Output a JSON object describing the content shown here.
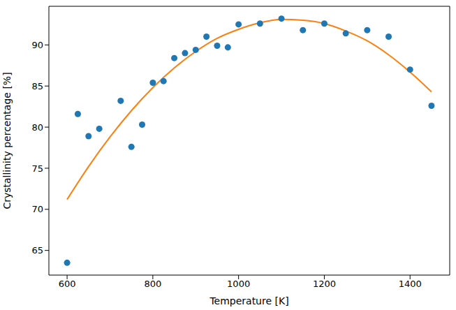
{
  "chart_data": {
    "type": "scatter",
    "xlabel": "Temperature [K]",
    "ylabel": "Crystallinity percentage [%]",
    "xlim": [
      557.5,
      1492.5
    ],
    "ylim": [
      62.0,
      94.7
    ],
    "xticks": [
      600,
      800,
      1000,
      1200,
      1400
    ],
    "yticks": [
      65,
      70,
      75,
      80,
      85,
      90
    ],
    "grid": false,
    "series": [
      {
        "type": "scatter",
        "color": "#1f77b4",
        "marker": "circle",
        "x": [
          600,
          625,
          650,
          675,
          725,
          750,
          775,
          800,
          825,
          850,
          875,
          900,
          925,
          950,
          975,
          1000,
          1050,
          1100,
          1150,
          1200,
          1250,
          1300,
          1350,
          1400,
          1450
        ],
        "values": [
          63.5,
          81.6,
          78.9,
          79.8,
          83.2,
          77.6,
          80.3,
          85.4,
          85.6,
          88.4,
          89.0,
          89.4,
          91.0,
          89.9,
          89.7,
          92.5,
          92.6,
          93.2,
          91.8,
          92.6,
          91.4,
          91.8,
          91.0,
          87.0,
          82.6
        ]
      },
      {
        "type": "line",
        "color": "#ff7f0e",
        "line_style": "solid",
        "x": [
          600,
          650,
          700,
          750,
          800,
          850,
          900,
          950,
          1000,
          1050,
          1100,
          1150,
          1200,
          1250,
          1300,
          1350,
          1400,
          1450
        ],
        "values": [
          71.2,
          75.2,
          78.8,
          82.0,
          84.8,
          87.2,
          89.2,
          90.8,
          91.9,
          92.7,
          93.1,
          93.0,
          92.6,
          91.7,
          90.5,
          88.8,
          86.7,
          84.3
        ]
      }
    ]
  }
}
